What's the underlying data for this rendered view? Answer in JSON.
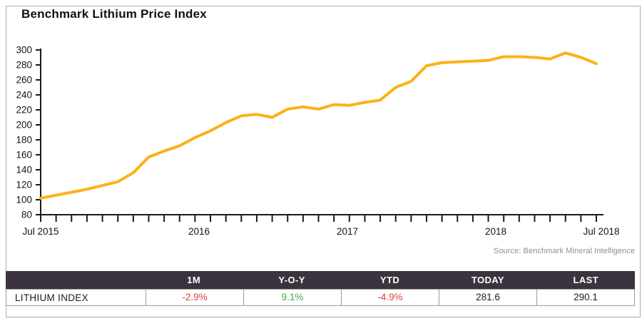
{
  "title": "Benchmark Lithium Price Index",
  "source_caption": "Source: Benchmark Mineral Intelligence",
  "colors": {
    "line": "#FBB217",
    "axis": "#1a1a1a",
    "table_header_bg": "#3B333E",
    "negative": "#D9453C",
    "positive": "#4BA34B",
    "border": "#ababab"
  },
  "chart_data": {
    "type": "line",
    "title": "Benchmark Lithium Price Index",
    "line_color": "#FBB217",
    "grid": false,
    "ylim": [
      80,
      300
    ],
    "y_ticks": [
      80,
      100,
      120,
      140,
      160,
      180,
      200,
      220,
      240,
      260,
      280,
      300
    ],
    "x_axis_labels": [
      "Jul 2015",
      "2016",
      "2017",
      "2018",
      "Jul 2018"
    ],
    "x": [
      "Jul 2015",
      "Aug 2015",
      "Sep 2015",
      "Oct 2015",
      "Nov 2015",
      "Dec 2015",
      "Jan 2016",
      "Feb 2016",
      "Mar 2016",
      "Apr 2016",
      "May 2016",
      "Jun 2016",
      "Jul 2016",
      "Aug 2016",
      "Sep 2016",
      "Oct 2016",
      "Nov 2016",
      "Dec 2016",
      "Jan 2017",
      "Feb 2017",
      "Mar 2017",
      "Apr 2017",
      "May 2017",
      "Jun 2017",
      "Jul 2017",
      "Aug 2017",
      "Sep 2017",
      "Oct 2017",
      "Nov 2017",
      "Dec 2017",
      "Jan 2018",
      "Feb 2018",
      "Mar 2018",
      "Apr 2018",
      "May 2018",
      "Jun 2018",
      "Jul 2018"
    ],
    "values": [
      102,
      106,
      110,
      114,
      119,
      124,
      136,
      157,
      165,
      172,
      183,
      192,
      203,
      212,
      214,
      210,
      221,
      224,
      221,
      227,
      226,
      230,
      233,
      250,
      258,
      279,
      283,
      284,
      285,
      286,
      291,
      291,
      290,
      288,
      296,
      290.1,
      281.6
    ]
  },
  "table": {
    "headers": [
      "",
      "1M",
      "Y-O-Y",
      "YTD",
      "TODAY",
      "LAST"
    ],
    "rows": [
      {
        "label": "LITHIUM INDEX",
        "cells": [
          {
            "text": "-2.9%",
            "state": "negative"
          },
          {
            "text": "9.1%",
            "state": "positive"
          },
          {
            "text": "-4.9%",
            "state": "negative"
          },
          {
            "text": "281.6",
            "state": "neutral"
          },
          {
            "text": "290.1",
            "state": "neutral"
          }
        ]
      }
    ]
  }
}
